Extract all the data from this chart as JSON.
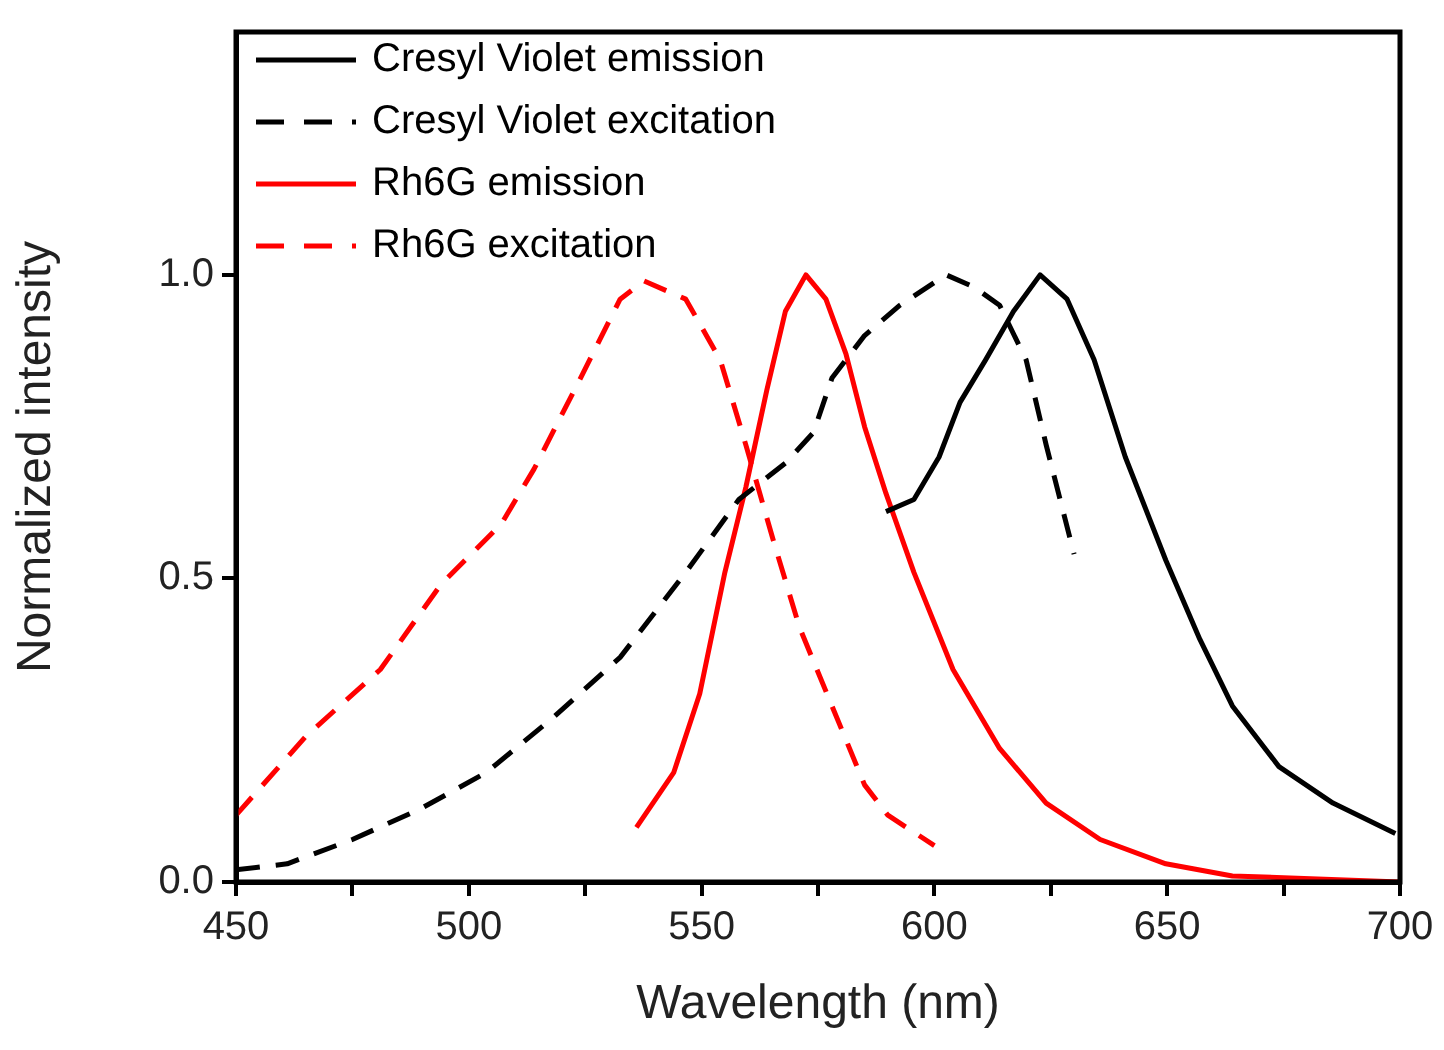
{
  "chart_data": {
    "type": "line",
    "xlabel": "Wavelength (nm)",
    "ylabel": "Normalized intensity",
    "xlim": [
      450,
      700
    ],
    "ylim": [
      0,
      1.4
    ],
    "xticks": [
      450,
      {
        "value": 475,
        "label": null
      },
      500,
      {
        "value": 525,
        "label": null
      },
      550,
      {
        "value": 575,
        "label": null
      },
      600,
      {
        "value": 625,
        "label": null
      },
      650,
      {
        "value": 675,
        "label": null
      },
      700
    ],
    "yticks": [
      {
        "value": 0,
        "label": "0.0"
      },
      {
        "value": 0.5,
        "label": "0.5"
      },
      {
        "value": 1,
        "label": "1.0"
      }
    ],
    "grid": false,
    "legend": "top left",
    "marker": "none",
    "series": [
      {
        "name": "Cresyl Violet emission",
        "color": "#000000",
        "line_style": "solid",
        "x": [
          589.6,
          595.6,
          601,
          605.5,
          611,
          617,
          622.7,
          628.5,
          634.3,
          641,
          649.7,
          657,
          664,
          674,
          685.6,
          699
        ],
        "values": [
          0.61,
          0.63,
          0.7,
          0.79,
          0.86,
          0.94,
          1.0,
          0.96,
          0.86,
          0.7,
          0.53,
          0.4,
          0.29,
          0.19,
          0.13,
          0.08
        ]
      },
      {
        "name": "Cresyl Violet excitation",
        "color": "#000000",
        "line_style": "dashed",
        "x": [
          450,
          461,
          475,
          489.5,
          503.7,
          518,
          532.5,
          546.6,
          558,
          568,
          574,
          578,
          585,
          592.6,
          602.5,
          608.5,
          614,
          619.7,
          624,
          630
        ],
        "values": [
          0.02,
          0.03,
          0.07,
          0.12,
          0.18,
          0.27,
          0.37,
          0.51,
          0.63,
          0.69,
          0.74,
          0.83,
          0.9,
          0.95,
          1.0,
          0.98,
          0.95,
          0.86,
          0.72,
          0.54
        ]
      },
      {
        "name": "Rh6G emission",
        "color": "#ff0000",
        "line_style": "solid",
        "x": [
          536,
          544,
          549.6,
          555,
          559.5,
          564,
          568,
          572.4,
          576.7,
          581,
          585,
          589.6,
          595.6,
          604,
          614,
          624,
          635.6,
          649.7,
          664,
          700
        ],
        "values": [
          0.09,
          0.18,
          0.31,
          0.51,
          0.65,
          0.81,
          0.94,
          1.0,
          0.96,
          0.87,
          0.75,
          0.64,
          0.51,
          0.35,
          0.22,
          0.13,
          0.07,
          0.03,
          0.01,
          0.0
        ]
      },
      {
        "name": "Rh6G excitation",
        "color": "#ff0000",
        "line_style": "dashed",
        "x": [
          450,
          465,
          481,
          494,
          507,
          514,
          524,
          532.5,
          537.6,
          546.6,
          554,
          559.5,
          565.5,
          571,
          578,
          585,
          590,
          600
        ],
        "values": [
          0.11,
          0.24,
          0.35,
          0.49,
          0.59,
          0.68,
          0.83,
          0.96,
          0.99,
          0.96,
          0.86,
          0.72,
          0.56,
          0.42,
          0.29,
          0.16,
          0.11,
          0.06
        ]
      }
    ]
  }
}
